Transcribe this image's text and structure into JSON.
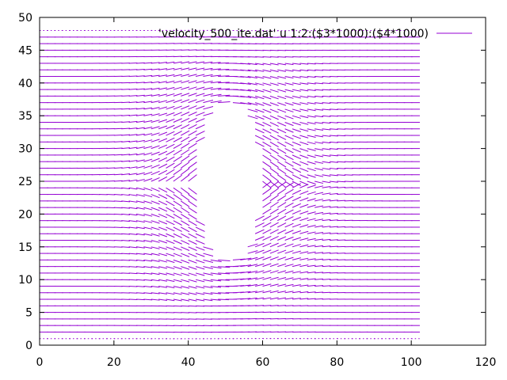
{
  "chart_data": {
    "type": "vector-field",
    "title": "",
    "xlabel": "",
    "ylabel": "",
    "xlim": [
      0,
      120
    ],
    "ylim": [
      0,
      50
    ],
    "x_ticks": [
      0,
      20,
      40,
      60,
      80,
      100,
      120
    ],
    "y_ticks": [
      0,
      5,
      10,
      15,
      20,
      25,
      30,
      35,
      40,
      45,
      50
    ],
    "grid": false,
    "legend_position": "top-right",
    "series": [
      {
        "name": "'velocity_500_ite.dat' u 1:2:($3*1000):($4*1000)",
        "color": "#9400d3",
        "domain_x": [
          0,
          100
        ],
        "domain_y": [
          1,
          48
        ],
        "vector_spacing": 1,
        "obstacle": {
          "shape": "ellipse",
          "center": [
            50,
            25
          ],
          "radius_x": 9,
          "radius_y": 12
        }
      }
    ]
  }
}
